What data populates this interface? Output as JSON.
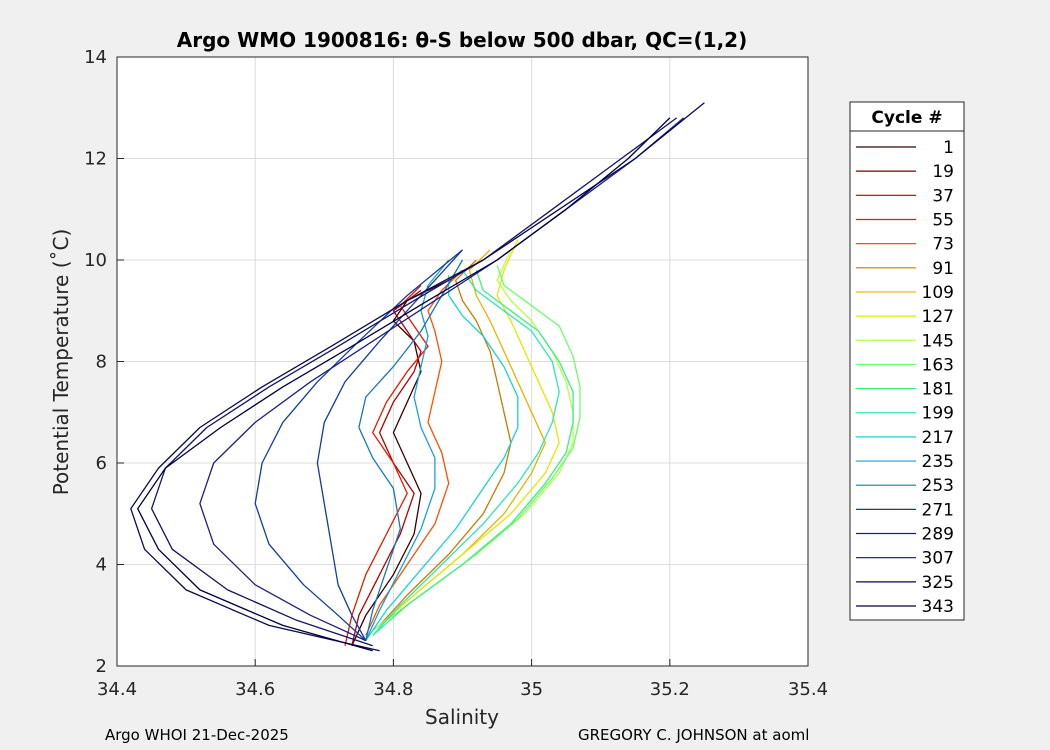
{
  "chart_data": {
    "type": "line",
    "title": "Argo WMO 1900816: θ-S below 500 dbar,  QC=(1,2)",
    "xlabel": "Salinity",
    "ylabel": "Potential Temperature (˚C)",
    "xlim": [
      34.4,
      35.4
    ],
    "ylim": [
      2,
      14
    ],
    "xticks": [
      "34.4",
      "34.6",
      "34.8",
      "35",
      "35.2",
      "35.4"
    ],
    "yticks": [
      "2",
      "4",
      "6",
      "8",
      "10",
      "12",
      "14"
    ],
    "grid": true,
    "legend": {
      "title": "Cycle #",
      "placement": "right",
      "entries": [
        "1",
        "19",
        "37",
        "55",
        "73",
        "91",
        "109",
        "127",
        "145",
        "163",
        "181",
        "199",
        "217",
        "235",
        "253",
        "271",
        "289",
        "307",
        "325",
        "343"
      ],
      "colors": [
        "#3a0000",
        "#7a0000",
        "#b40000",
        "#e61a00",
        "#ff5000",
        "#cc7a00",
        "#e6b400",
        "#e6e600",
        "#b4ff4a",
        "#6aff6a",
        "#3cf080",
        "#2ee6b4",
        "#1ad2d2",
        "#1aa0d2",
        "#1478b4",
        "#143ca0",
        "#1e1e82",
        "#141464",
        "#0a0a50",
        "#000040"
      ]
    },
    "series": [
      {
        "color": "#3a0000",
        "x": [
          34.74,
          34.76,
          34.8,
          34.83,
          34.84,
          34.82,
          34.8,
          34.82,
          34.84,
          34.83,
          34.8,
          34.82,
          34.88
        ],
        "y": [
          2.4,
          3.0,
          3.8,
          4.6,
          5.4,
          6.0,
          6.6,
          7.2,
          7.8,
          8.4,
          8.8,
          9.2,
          9.6
        ]
      },
      {
        "color": "#b40000",
        "x": [
          34.74,
          34.75,
          34.78,
          34.81,
          34.83,
          34.8,
          34.78,
          34.8,
          34.83,
          34.84,
          34.82,
          34.8,
          34.84
        ],
        "y": [
          2.4,
          3.0,
          3.8,
          4.6,
          5.4,
          6.0,
          6.6,
          7.2,
          7.8,
          8.2,
          8.6,
          9.0,
          9.4
        ]
      },
      {
        "color": "#e61a00",
        "x": [
          34.73,
          34.74,
          34.76,
          34.79,
          34.82,
          34.8,
          34.77,
          34.79,
          34.82,
          34.85,
          34.83,
          34.81,
          34.84
        ],
        "y": [
          2.4,
          3.0,
          3.8,
          4.6,
          5.4,
          6.0,
          6.6,
          7.2,
          7.8,
          8.3,
          8.7,
          9.1,
          9.5
        ]
      },
      {
        "color": "#ff5000",
        "x": [
          34.76,
          34.78,
          34.82,
          34.86,
          34.88,
          34.87,
          34.85,
          34.86,
          34.87,
          34.86,
          34.85,
          34.87,
          34.9
        ],
        "y": [
          2.6,
          3.2,
          4.0,
          4.8,
          5.6,
          6.2,
          6.8,
          7.4,
          8.0,
          8.6,
          9.0,
          9.4,
          9.8
        ]
      },
      {
        "color": "#cc7a00",
        "x": [
          34.78,
          34.82,
          34.88,
          34.93,
          34.96,
          34.97,
          34.96,
          34.95,
          34.94,
          34.92,
          34.9,
          34.89,
          34.92
        ],
        "y": [
          2.8,
          3.4,
          4.2,
          5.0,
          5.8,
          6.4,
          7.0,
          7.6,
          8.2,
          8.8,
          9.2,
          9.6,
          10.0
        ]
      },
      {
        "color": "#e6b400",
        "x": [
          34.78,
          34.83,
          34.9,
          34.96,
          35.0,
          35.02,
          35.0,
          34.98,
          34.96,
          34.94,
          34.92,
          34.91,
          34.94
        ],
        "y": [
          2.8,
          3.4,
          4.2,
          5.0,
          5.8,
          6.4,
          7.0,
          7.6,
          8.2,
          8.8,
          9.3,
          9.8,
          10.2
        ]
      },
      {
        "color": "#e6e600",
        "x": [
          34.78,
          34.83,
          34.9,
          34.97,
          35.02,
          35.04,
          35.03,
          35.01,
          34.99,
          34.97,
          34.95,
          34.96,
          34.98
        ],
        "y": [
          2.8,
          3.4,
          4.2,
          5.0,
          5.8,
          6.4,
          7.0,
          7.6,
          8.2,
          8.8,
          9.3,
          9.8,
          10.4
        ]
      },
      {
        "color": "#b4ff4a",
        "x": [
          34.78,
          34.84,
          34.92,
          34.99,
          35.04,
          35.06,
          35.06,
          35.05,
          35.03,
          35.0,
          34.97,
          34.95,
          34.97
        ],
        "y": [
          2.8,
          3.4,
          4.2,
          5.0,
          5.8,
          6.4,
          7.0,
          7.6,
          8.2,
          8.8,
          9.2,
          9.6,
          10.2
        ]
      },
      {
        "color": "#6aff6a",
        "x": [
          34.77,
          34.83,
          34.91,
          34.98,
          35.03,
          35.06,
          35.07,
          35.07,
          35.06,
          35.04,
          35.0,
          34.96,
          34.95
        ],
        "y": [
          2.7,
          3.3,
          4.1,
          4.9,
          5.7,
          6.3,
          6.9,
          7.5,
          8.1,
          8.7,
          9.1,
          9.5,
          9.9
        ]
      },
      {
        "color": "#3cf080",
        "x": [
          34.77,
          34.82,
          34.9,
          34.97,
          35.02,
          35.05,
          35.06,
          35.06,
          35.04,
          35.01,
          34.97,
          34.93,
          34.92
        ],
        "y": [
          2.6,
          3.2,
          4.0,
          4.8,
          5.6,
          6.2,
          6.8,
          7.4,
          8.0,
          8.6,
          9.0,
          9.4,
          9.8
        ]
      },
      {
        "color": "#2ee6b4",
        "x": [
          34.77,
          34.81,
          34.87,
          34.93,
          34.98,
          35.01,
          35.03,
          35.04,
          35.03,
          35.0,
          34.96,
          34.92,
          34.9
        ],
        "y": [
          2.6,
          3.2,
          4.0,
          4.8,
          5.6,
          6.2,
          6.8,
          7.4,
          8.0,
          8.6,
          9.0,
          9.4,
          9.8
        ]
      },
      {
        "color": "#1ad2d2",
        "x": [
          34.76,
          34.79,
          34.84,
          34.89,
          34.93,
          34.96,
          34.98,
          34.98,
          34.96,
          34.93,
          34.9,
          34.88,
          34.88
        ],
        "y": [
          2.5,
          3.1,
          3.9,
          4.7,
          5.5,
          6.1,
          6.7,
          7.3,
          7.9,
          8.5,
          8.9,
          9.3,
          9.7
        ]
      },
      {
        "color": "#1aa0d2",
        "x": [
          34.76,
          34.78,
          34.81,
          34.84,
          34.86,
          34.86,
          34.84,
          34.83,
          34.84,
          34.85,
          34.84,
          34.85,
          34.88
        ],
        "y": [
          2.5,
          3.1,
          3.9,
          4.7,
          5.5,
          6.1,
          6.7,
          7.3,
          7.9,
          8.5,
          9.0,
          9.5,
          10.0
        ]
      },
      {
        "color": "#1478b4",
        "x": [
          34.76,
          34.77,
          34.79,
          34.81,
          34.8,
          34.77,
          34.75,
          34.76,
          34.8,
          34.84,
          34.87,
          34.9
        ],
        "y": [
          2.5,
          3.1,
          3.9,
          4.7,
          5.5,
          6.1,
          6.7,
          7.3,
          7.9,
          8.6,
          9.3,
          10.0
        ]
      },
      {
        "color": "#143ca0",
        "x": [
          34.76,
          34.74,
          34.72,
          34.71,
          34.7,
          34.69,
          34.7,
          34.73,
          34.78,
          34.84,
          34.9
        ],
        "y": [
          2.5,
          3.0,
          3.6,
          4.4,
          5.2,
          6.0,
          6.8,
          7.6,
          8.4,
          9.3,
          10.2
        ]
      },
      {
        "color": "#143ca0",
        "x": [
          34.76,
          34.72,
          34.67,
          34.62,
          34.6,
          34.61,
          34.64,
          34.69,
          34.75,
          34.82,
          34.9
        ],
        "y": [
          2.5,
          3.0,
          3.6,
          4.4,
          5.2,
          6.0,
          6.8,
          7.6,
          8.4,
          9.3,
          10.2
        ]
      },
      {
        "color": "#1e1e82",
        "x": [
          34.76,
          34.68,
          34.6,
          34.54,
          34.52,
          34.54,
          34.6,
          34.68,
          34.77,
          34.86,
          34.95,
          35.05,
          35.15,
          35.22
        ],
        "y": [
          2.5,
          3.0,
          3.6,
          4.4,
          5.2,
          6.0,
          6.8,
          7.6,
          8.4,
          9.2,
          10.0,
          11.0,
          12.0,
          12.8
        ]
      },
      {
        "color": "#141464",
        "x": [
          34.77,
          34.66,
          34.56,
          34.48,
          34.45,
          34.47,
          34.53,
          34.62,
          34.72,
          34.83,
          34.93,
          35.03,
          35.13,
          35.21
        ],
        "y": [
          2.4,
          2.9,
          3.5,
          4.3,
          5.1,
          5.9,
          6.7,
          7.5,
          8.3,
          9.2,
          10.0,
          11.0,
          12.0,
          12.8
        ]
      },
      {
        "color": "#0a0a50",
        "x": [
          34.78,
          34.62,
          34.5,
          34.44,
          34.42,
          34.46,
          34.52,
          34.61,
          34.71,
          34.82,
          34.93,
          35.04,
          35.15,
          35.25
        ],
        "y": [
          2.3,
          2.8,
          3.5,
          4.3,
          5.1,
          5.9,
          6.7,
          7.5,
          8.3,
          9.2,
          10.0,
          11.0,
          12.0,
          13.1
        ]
      },
      {
        "color": "#000040",
        "x": [
          34.77,
          34.64,
          34.52,
          34.46,
          34.43,
          34.47,
          34.55,
          34.64,
          34.74,
          34.85,
          34.95,
          35.05,
          35.14,
          35.2
        ],
        "y": [
          2.3,
          2.8,
          3.5,
          4.3,
          5.1,
          5.9,
          6.7,
          7.5,
          8.3,
          9.2,
          10.0,
          11.0,
          12.0,
          12.8
        ]
      }
    ]
  },
  "footer": {
    "left": "Argo WHOI 21-Dec-2025",
    "right": "GREGORY C. JOHNSON at aoml"
  }
}
